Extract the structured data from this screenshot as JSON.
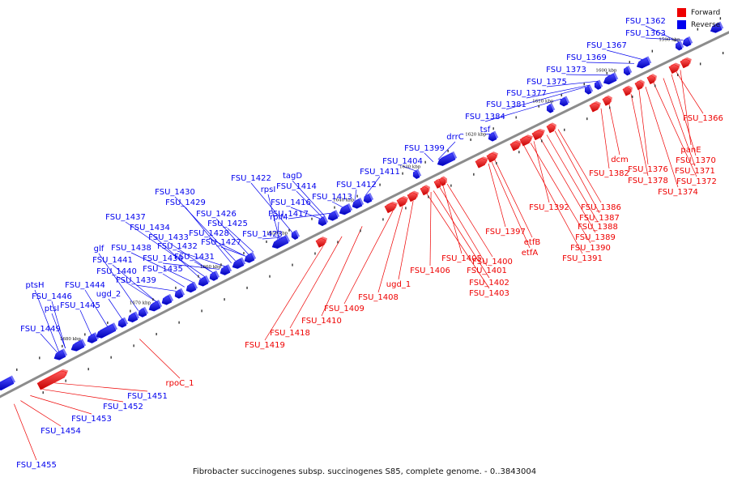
{
  "caption": "Fibrobacter succinogenes subsp. succinogenes S85, complete genome. - 0..3843004",
  "legend": [
    {
      "label": "Forward",
      "color": "#ee0000"
    },
    {
      "label": "Reverse",
      "color": "#0000ee"
    }
  ],
  "colors": {
    "forward": "#ee0000",
    "reverse": "#0000ee",
    "backbone": "#888888"
  },
  "ticks": [
    "1590 kbp",
    "1600 kbp",
    "1610 kbp",
    "1620 kbp",
    "1630 kbp",
    "1640 kbp",
    "1650 kbp",
    "1660 kbp",
    "1670 kbp",
    "1680 kbp"
  ],
  "reverse_labels": [
    "FSU_1362",
    "FSU_1363",
    "FSU_1367",
    "FSU_1369",
    "FSU_1373",
    "FSU_1375",
    "FSU_1377",
    "FSU_1381",
    "FSU_1384",
    "tsf",
    "drrC",
    "FSU_1399",
    "FSU_1404",
    "FSU_1411",
    "FSU_1412",
    "FSU_1413",
    "tagD",
    "FSU_1414",
    "FSU_1422",
    "rpsI",
    "FSU_1416",
    "FSU_1417",
    "rplM",
    "FSU_1423",
    "FSU_1430",
    "FSU_1429",
    "FSU_1426",
    "FSU_1425",
    "FSU_1437",
    "FSU_1434",
    "FSU_1428",
    "FSU_1433",
    "FSU_1427",
    "glf",
    "FSU_1438",
    "FSU_1432",
    "FSU_1441",
    "FSU_1436",
    "FSU_1431",
    "FSU_1440",
    "FSU_1435",
    "ptsH",
    "FSU_1444",
    "ugd_2",
    "FSU_1439",
    "FSU_1446",
    "ptsI",
    "FSU_1445",
    "FSU_1449"
  ],
  "forward_labels": [
    "FSU_1366",
    "panE",
    "FSU_1370",
    "FSU_1371",
    "FSU_1372",
    "FSU_1374",
    "FSU_1376",
    "dcm",
    "FSU_1378",
    "FSU_1382",
    "FSU_1386",
    "FSU_1387",
    "FSU_1392",
    "FSU_1388",
    "FSU_1389",
    "FSU_1390",
    "FSU_1391",
    "FSU_1397",
    "etfB",
    "etfA",
    "FSU_1400",
    "FSU_1405",
    "FSU_1401",
    "FSU_1406",
    "FSU_1402",
    "FSU_1403",
    "ugd_1",
    "FSU_1408",
    "FSU_1409",
    "FSU_1410",
    "FSU_1418",
    "FSU_1419",
    "rpoC_1",
    "FSU_1451",
    "FSU_1452",
    "FSU_1453",
    "FSU_1454",
    "FSU_1455"
  ]
}
